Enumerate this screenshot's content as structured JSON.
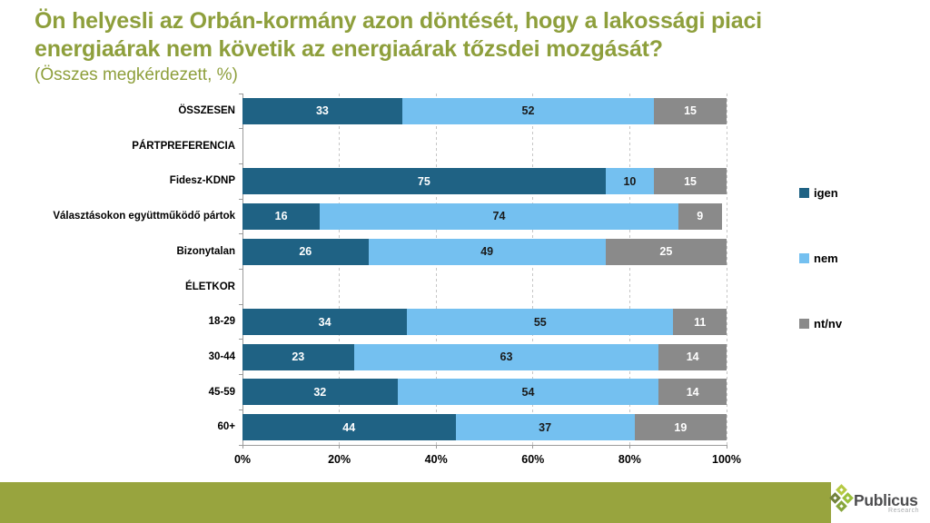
{
  "title_lines": [
    "Ön helyesli az Orbán-kormány azon döntését, hogy a lakossági piaci",
    "energiaárak nem követik az energiaárak tőzsdei mozgását?"
  ],
  "subtitle": "(Összes megkérdezett, %)",
  "chart_data": {
    "type": "bar",
    "stacked": true,
    "orientation": "horizontal",
    "title": "Ön helyesli az Orbán-kormány azon döntését, hogy a lakossági piaci energiaárak nem követik az energiaárak tőzsdei mozgását?",
    "subtitle": "(Összes megkérdezett, %)",
    "categories": [
      "ÖSSZESEN",
      "PÁRTPREFERENCIA",
      "Fidesz-KDNP",
      "Választásokon együttműködő pártok",
      "Bizonytalan",
      "ÉLETKOR",
      "18-29",
      "30-44",
      "45-59",
      "60+"
    ],
    "section_header_rows": [
      1,
      5
    ],
    "series": [
      {
        "name": "igen",
        "color": "#1F6284",
        "label_color": "#FFFFFF",
        "values": [
          33,
          null,
          75,
          16,
          26,
          null,
          34,
          23,
          32,
          44
        ]
      },
      {
        "name": "nem",
        "color": "#74C0F0",
        "label_color": "#1A1A1A",
        "values": [
          52,
          null,
          10,
          74,
          49,
          null,
          55,
          63,
          54,
          37
        ]
      },
      {
        "name": "nt/nv",
        "color": "#8A8A8A",
        "label_color": "#FFFFFF",
        "values": [
          15,
          null,
          15,
          9,
          25,
          null,
          11,
          14,
          14,
          19
        ]
      }
    ],
    "xlim": [
      0,
      100
    ],
    "x_ticks": [
      "0%",
      "20%",
      "40%",
      "60%",
      "80%",
      "100%"
    ],
    "grid": "dashed-vertical",
    "legend_position": "right"
  },
  "footer": {
    "bar_color": "#98A43E",
    "logo_text": "Publicus",
    "logo_subtext": "Research",
    "logo_diamond_colors": [
      "#B5C943",
      "#72823B",
      "#9ABF3C",
      "#86A53C"
    ]
  }
}
